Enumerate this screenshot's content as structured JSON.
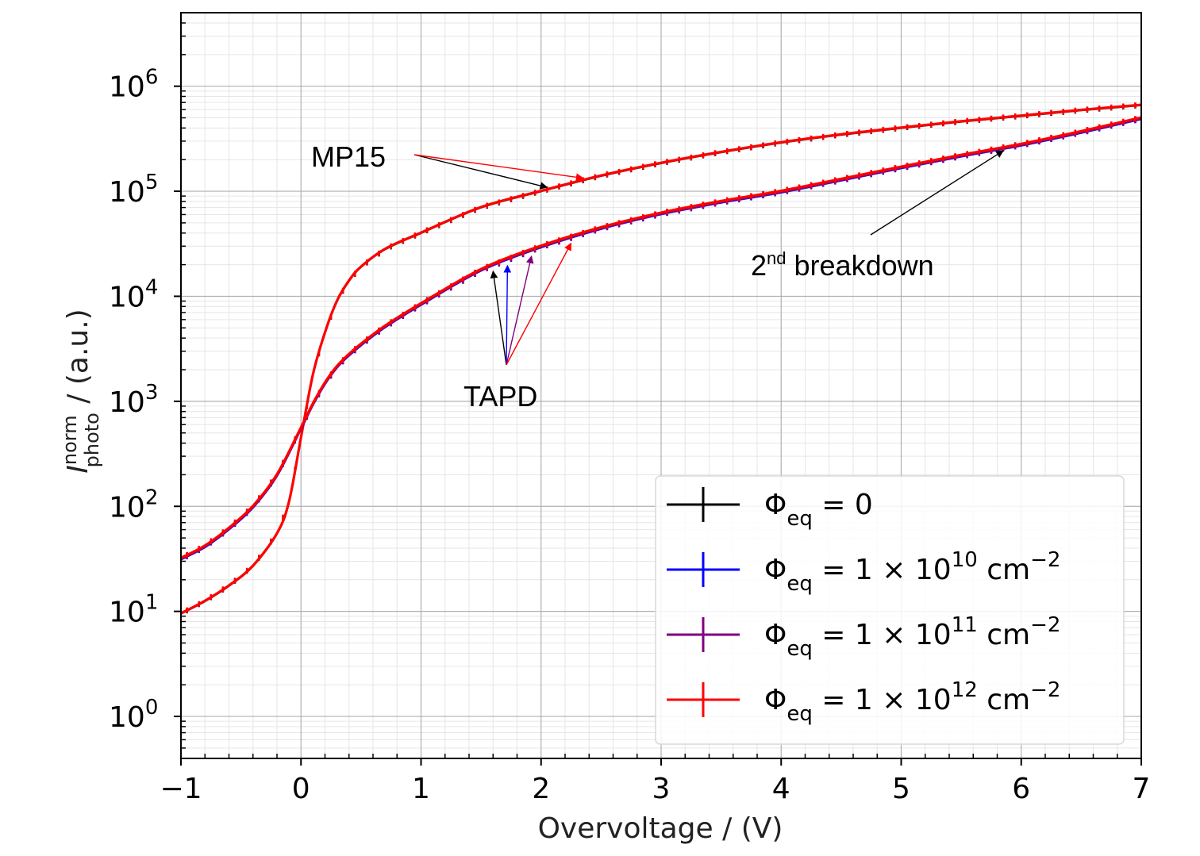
{
  "chart_data": {
    "type": "line",
    "xlabel": "Overvoltage / (V)",
    "ylabel": {
      "symbol": "I",
      "superscript": "norm",
      "subscript": "photo",
      "rest": " / (a.u.)"
    },
    "xlim": [
      -1,
      7
    ],
    "ylim_log10": [
      -0.4,
      6.7
    ],
    "yscale": "log",
    "grid": true,
    "x_ticks": [
      {
        "value": -1,
        "label": "−1"
      },
      {
        "value": 0,
        "label": "0"
      },
      {
        "value": 1,
        "label": "1"
      },
      {
        "value": 2,
        "label": "2"
      },
      {
        "value": 3,
        "label": "3"
      },
      {
        "value": 4,
        "label": "4"
      },
      {
        "value": 5,
        "label": "5"
      },
      {
        "value": 6,
        "label": "6"
      },
      {
        "value": 7,
        "label": "7"
      }
    ],
    "y_ticks": [
      {
        "exp": 0,
        "base": "10",
        "sup": "0"
      },
      {
        "exp": 1,
        "base": "10",
        "sup": "1"
      },
      {
        "exp": 2,
        "base": "10",
        "sup": "2"
      },
      {
        "exp": 3,
        "base": "10",
        "sup": "3"
      },
      {
        "exp": 4,
        "base": "10",
        "sup": "4"
      },
      {
        "exp": 5,
        "base": "10",
        "sup": "5"
      },
      {
        "exp": 6,
        "base": "10",
        "sup": "6"
      }
    ],
    "device_curves": {
      "MP15": {
        "x": [
          -1.0,
          -0.8,
          -0.6,
          -0.4,
          -0.2,
          -0.1,
          0.0,
          0.1,
          0.2,
          0.3,
          0.4,
          0.5,
          0.7,
          1.0,
          1.5,
          2.0,
          2.5,
          3.0,
          3.5,
          4.0,
          4.5,
          5.0,
          5.5,
          6.0,
          6.5,
          7.0
        ],
        "y": [
          9.5,
          12.5,
          17.5,
          27,
          55,
          110,
          450,
          1800,
          4500,
          9000,
          14000,
          19000,
          28000,
          40000,
          70000,
          100000,
          140000,
          185000,
          235000,
          290000,
          345000,
          400000,
          460000,
          520000,
          590000,
          660000
        ]
      },
      "TAPD": {
        "x": [
          -1.0,
          -0.8,
          -0.6,
          -0.4,
          -0.2,
          0.0,
          0.1,
          0.2,
          0.3,
          0.4,
          0.5,
          0.7,
          1.0,
          1.5,
          2.0,
          2.5,
          3.0,
          3.5,
          4.0,
          4.5,
          5.0,
          5.5,
          6.0,
          6.5,
          7.0
        ],
        "y": [
          32,
          42,
          62,
          100,
          200,
          560,
          950,
          1500,
          2150,
          2800,
          3500,
          5200,
          8500,
          18000,
          30000,
          45000,
          62000,
          80000,
          100000,
          130000,
          170000,
          220000,
          280000,
          370000,
          500000
        ]
      }
    },
    "series": [
      {
        "name": "Φeq = 0",
        "color": "#000000",
        "fluence": "0"
      },
      {
        "name": "Φeq = 1 × 10^10 cm^−2",
        "color": "#0000ff",
        "fluence": "1 × 10^10 cm^−2"
      },
      {
        "name": "Φeq = 1 × 10^11 cm^−2",
        "color": "#7f007f",
        "fluence": "1 × 10^11 cm^−2"
      },
      {
        "name": "Φeq = 1 × 10^12 cm^−2",
        "color": "#ff0000",
        "fluence": "1 × 10^12 cm^−2"
      }
    ],
    "legend": {
      "placement": "lower-right",
      "entries": [
        {
          "phi": "Φ",
          "sub": "eq",
          "eq": " = ",
          "coef": "0",
          "times": "",
          "base": "",
          "exp": "",
          "unit": "",
          "unit_exp": "",
          "color": "#000000"
        },
        {
          "phi": "Φ",
          "sub": "eq",
          "eq": " = ",
          "coef": "1",
          "times": " × ",
          "base": "10",
          "exp": "10",
          "unit": " cm",
          "unit_exp": "−2",
          "color": "#0000ff"
        },
        {
          "phi": "Φ",
          "sub": "eq",
          "eq": " = ",
          "coef": "1",
          "times": " × ",
          "base": "10",
          "exp": "11",
          "unit": " cm",
          "unit_exp": "−2",
          "color": "#7f007f"
        },
        {
          "phi": "Φ",
          "sub": "eq",
          "eq": " = ",
          "coef": "1",
          "times": " × ",
          "base": "10",
          "exp": "12",
          "unit": " cm",
          "unit_exp": "−2",
          "color": "#ff0000"
        }
      ]
    },
    "annotations": [
      {
        "id": "mp15",
        "text": "MP15",
        "sup": "",
        "rest": "",
        "points_to": "MP15 curve",
        "arrow_colors": [
          "#000000",
          "#ff0000"
        ],
        "targets_x": [
          2.05,
          2.35
        ]
      },
      {
        "id": "tapd",
        "text": "TAPD",
        "sup": "",
        "rest": "",
        "points_to": "TAPD curves",
        "arrow_colors": [
          "#000000",
          "#0000ff",
          "#7f007f",
          "#ff0000"
        ],
        "targets_x": [
          1.6,
          1.72,
          1.92,
          2.25
        ]
      },
      {
        "id": "second-breakdown",
        "text": "2",
        "sup": "nd",
        "rest": " breakdown",
        "points_to": "TAPD curve",
        "arrow_colors": [
          "#000000"
        ],
        "targets_x": [
          5.85
        ]
      }
    ]
  }
}
